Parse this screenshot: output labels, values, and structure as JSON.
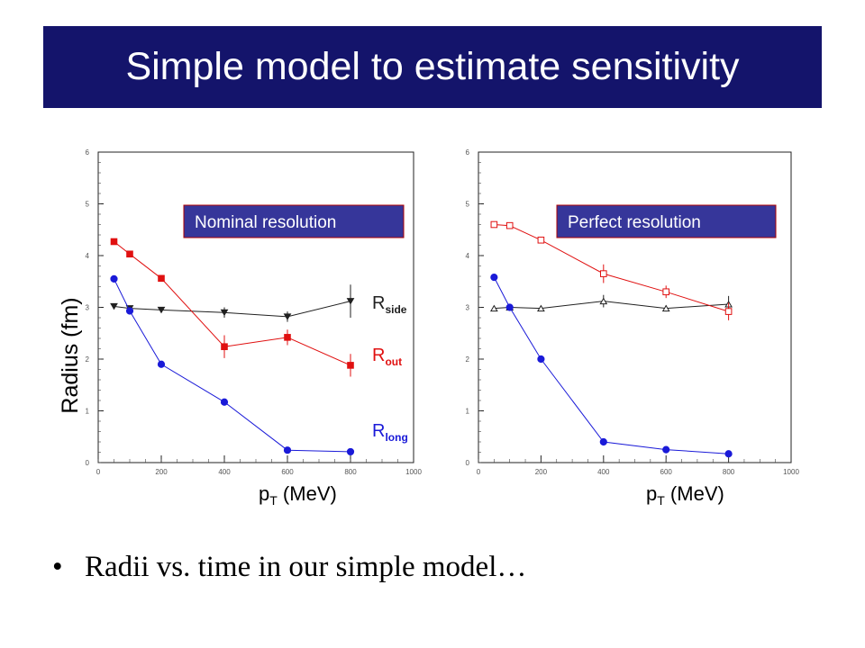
{
  "slide": {
    "title": "Simple model to estimate sensitivity",
    "bullet_symbol": "•",
    "bullet_text": "Radii vs. time in our simple model…",
    "colors": {
      "title_bg": "#14146b",
      "title_text": "#ffffff",
      "rside": "#202020",
      "rout": "#e01010",
      "rlong": "#1a1ad8",
      "box_fill": "#36369a"
    }
  },
  "chart_data": [
    {
      "type": "line",
      "annotation": "Nominal resolution",
      "ylabel": "Radius (fm)",
      "xlabel": {
        "main": "p",
        "sub": "T",
        "rest": " (MeV)"
      },
      "xlim": [
        0,
        1000
      ],
      "ylim": [
        0,
        6
      ],
      "xticks": [
        0,
        200,
        400,
        600,
        800,
        1000
      ],
      "yticks": [
        0,
        1,
        2,
        3,
        4,
        5,
        6
      ],
      "grid": false,
      "series": [
        {
          "name": "R_side",
          "label_main": "R",
          "label_sub": "side",
          "color": "#202020",
          "marker": "triangle-down",
          "filled": true,
          "x": [
            50,
            100,
            200,
            400,
            600,
            800
          ],
          "y": [
            3.02,
            2.98,
            2.95,
            2.9,
            2.82,
            3.12
          ],
          "err": [
            0,
            0,
            0,
            0.1,
            0.1,
            0.32
          ]
        },
        {
          "name": "R_out",
          "label_main": "R",
          "label_sub": "out",
          "color": "#e01010",
          "marker": "square",
          "filled": true,
          "x": [
            50,
            100,
            200,
            400,
            600,
            800
          ],
          "y": [
            4.27,
            4.03,
            3.56,
            2.24,
            2.42,
            1.88
          ],
          "err": [
            0,
            0,
            0,
            0.22,
            0.15,
            0.22
          ]
        },
        {
          "name": "R_long",
          "label_main": "R",
          "label_sub": "long",
          "color": "#1a1ad8",
          "marker": "circle",
          "filled": true,
          "x": [
            50,
            100,
            200,
            400,
            600,
            800
          ],
          "y": [
            3.55,
            2.93,
            1.9,
            1.17,
            0.24,
            0.21
          ],
          "err": [
            0,
            0,
            0,
            0,
            0,
            0
          ]
        }
      ]
    },
    {
      "type": "line",
      "annotation": "Perfect resolution",
      "xlabel": {
        "main": "p",
        "sub": "T",
        "rest": " (MeV)"
      },
      "xlim": [
        0,
        1000
      ],
      "ylim": [
        0,
        6
      ],
      "xticks": [
        0,
        200,
        400,
        600,
        800,
        1000
      ],
      "yticks": [
        0,
        1,
        2,
        3,
        4,
        5,
        6
      ],
      "grid": false,
      "series": [
        {
          "name": "R_side",
          "color": "#202020",
          "marker": "triangle-up",
          "filled": false,
          "x": [
            50,
            100,
            200,
            400,
            600,
            800
          ],
          "y": [
            2.98,
            3.0,
            2.98,
            3.12,
            2.98,
            3.06
          ],
          "err": [
            0,
            0,
            0,
            0.12,
            0.06,
            0.16
          ]
        },
        {
          "name": "R_out",
          "color": "#e01010",
          "marker": "square",
          "filled": false,
          "x": [
            50,
            100,
            200,
            400,
            600,
            800
          ],
          "y": [
            4.6,
            4.58,
            4.3,
            3.65,
            3.3,
            2.92
          ],
          "err": [
            0,
            0,
            0.06,
            0.18,
            0.12,
            0.17
          ]
        },
        {
          "name": "R_long",
          "color": "#1a1ad8",
          "marker": "circle",
          "filled": true,
          "x": [
            50,
            100,
            200,
            400,
            600,
            800
          ],
          "y": [
            3.58,
            3.0,
            2.0,
            0.4,
            0.25,
            0.17
          ],
          "err": [
            0,
            0,
            0,
            0,
            0,
            0
          ]
        }
      ]
    }
  ]
}
